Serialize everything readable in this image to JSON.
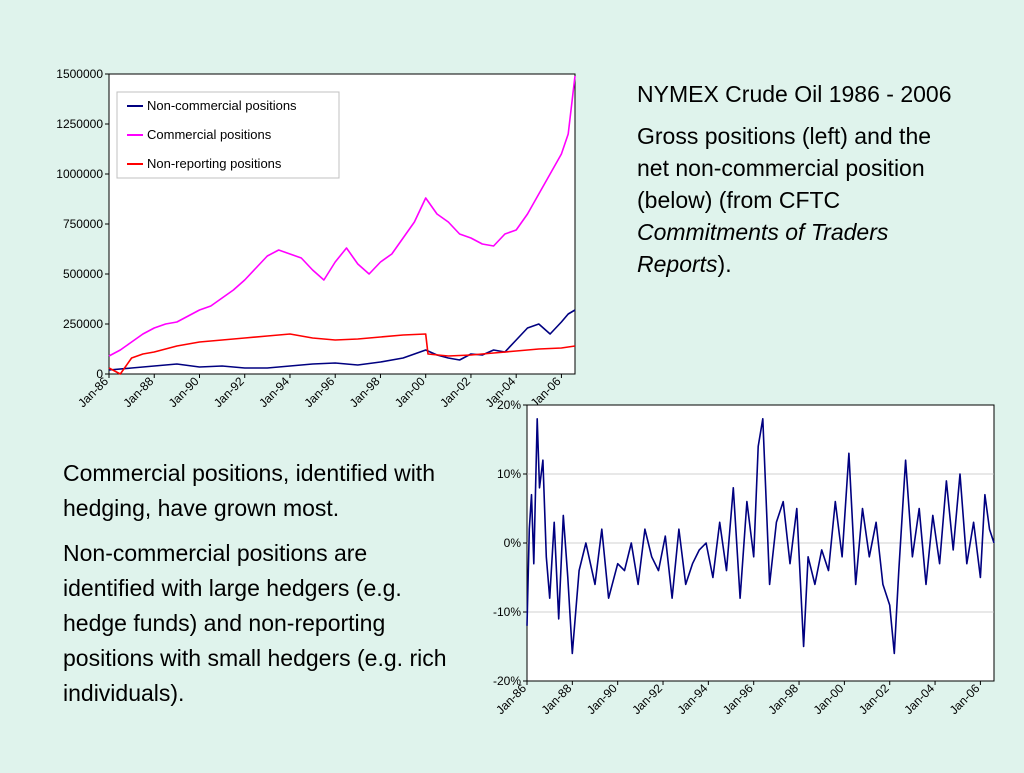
{
  "slide": {
    "title": "NYMEX Crude Oil 1986 - 2006",
    "description_part1": "Gross positions (left) and the net non-commercial position (below) (from CFTC ",
    "description_italic": "Commitments of Traders Reports",
    "description_end": ").",
    "note1": "Commercial positions, identified with hedging, have grown most.",
    "note2": "Non-commercial positions are identified with large hedgers (e.g. hedge funds) and non-reporting positions with small hedgers (e.g. rich individuals)."
  },
  "colors": {
    "background": "#dff3ec",
    "noncommercial": "#000080",
    "commercial": "#ff00ff",
    "nonreporting": "#ff0000"
  },
  "chart_data": [
    {
      "type": "line",
      "title": "",
      "xlabel": "",
      "ylabel": "",
      "x_tick_labels": [
        "Jan-86",
        "Jan-88",
        "Jan-90",
        "Jan-92",
        "Jan-94",
        "Jan-96",
        "Jan-98",
        "Jan-00",
        "Jan-02",
        "Jan-04",
        "Jan-06"
      ],
      "y_tick_labels": [
        "0",
        "250000",
        "500000",
        "750000",
        "1000000",
        "1250000",
        "1500000"
      ],
      "xlim": [
        1986.0,
        2006.6
      ],
      "ylim": [
        0,
        1500000
      ],
      "legend_placement": "top-left",
      "series": [
        {
          "name": "Non-commercial positions",
          "color": "#000080",
          "x": [
            1986.0,
            1987.0,
            1988.0,
            1989.0,
            1990.0,
            1991.0,
            1992.0,
            1993.0,
            1994.0,
            1995.0,
            1996.0,
            1997.0,
            1998.0,
            1999.0,
            1999.5,
            2000.0,
            2000.5,
            2001.0,
            2001.5,
            2002.0,
            2002.5,
            2003.0,
            2003.5,
            2004.0,
            2004.5,
            2005.0,
            2005.5,
            2006.0,
            2006.3,
            2006.6
          ],
          "y": [
            20000,
            30000,
            40000,
            50000,
            35000,
            40000,
            30000,
            30000,
            40000,
            50000,
            55000,
            45000,
            60000,
            80000,
            100000,
            120000,
            95000,
            80000,
            70000,
            100000,
            95000,
            120000,
            110000,
            170000,
            230000,
            250000,
            200000,
            260000,
            300000,
            320000
          ]
        },
        {
          "name": "Commercial positions",
          "color": "#ff00ff",
          "x": [
            1986.0,
            1986.5,
            1987.0,
            1987.5,
            1988.0,
            1988.5,
            1989.0,
            1989.5,
            1990.0,
            1990.5,
            1991.0,
            1991.5,
            1992.0,
            1992.5,
            1993.0,
            1993.5,
            1994.0,
            1994.5,
            1995.0,
            1995.5,
            1996.0,
            1996.5,
            1997.0,
            1997.5,
            1998.0,
            1998.5,
            1999.0,
            1999.5,
            2000.0,
            2000.5,
            2001.0,
            2001.5,
            2002.0,
            2002.5,
            2003.0,
            2003.5,
            2004.0,
            2004.5,
            2005.0,
            2005.5,
            2006.0,
            2006.3,
            2006.6
          ],
          "y": [
            90000,
            120000,
            160000,
            200000,
            230000,
            250000,
            260000,
            290000,
            320000,
            340000,
            380000,
            420000,
            470000,
            530000,
            590000,
            620000,
            600000,
            580000,
            520000,
            470000,
            560000,
            630000,
            550000,
            500000,
            560000,
            600000,
            680000,
            760000,
            880000,
            800000,
            760000,
            700000,
            680000,
            650000,
            640000,
            700000,
            720000,
            800000,
            900000,
            1000000,
            1100000,
            1200000,
            1490000
          ]
        },
        {
          "name": "Non-reporting positions",
          "color": "#ff0000",
          "x": [
            1986.0,
            1986.5,
            1987.0,
            1987.5,
            1988.0,
            1989.0,
            1990.0,
            1991.0,
            1992.0,
            1993.0,
            1994.0,
            1995.0,
            1996.0,
            1997.0,
            1998.0,
            1999.0,
            2000.0,
            2000.1,
            2001.0,
            2002.0,
            2003.0,
            2004.0,
            2005.0,
            2006.0,
            2006.6
          ],
          "y": [
            30000,
            0,
            80000,
            100000,
            110000,
            140000,
            160000,
            170000,
            180000,
            190000,
            200000,
            180000,
            170000,
            175000,
            185000,
            195000,
            200000,
            100000,
            90000,
            95000,
            105000,
            115000,
            125000,
            130000,
            140000
          ]
        }
      ]
    },
    {
      "type": "line",
      "title": "",
      "xlabel": "",
      "ylabel": "",
      "x_tick_labels": [
        "Jan-86",
        "Jan-88",
        "Jan-90",
        "Jan-92",
        "Jan-94",
        "Jan-96",
        "Jan-98",
        "Jan-00",
        "Jan-02",
        "Jan-04",
        "Jan-06"
      ],
      "y_tick_labels": [
        "-20%",
        "-10%",
        "0%",
        "10%",
        "20%"
      ],
      "xlim": [
        1986.0,
        2006.6
      ],
      "ylim": [
        -20,
        20
      ],
      "series": [
        {
          "color": "#000080",
          "x": [
            1986.0,
            1986.1,
            1986.2,
            1986.3,
            1986.45,
            1986.55,
            1986.7,
            1986.85,
            1987.0,
            1987.2,
            1987.4,
            1987.6,
            1987.8,
            1988.0,
            1988.3,
            1988.6,
            1989.0,
            1989.3,
            1989.6,
            1990.0,
            1990.3,
            1990.6,
            1990.9,
            1991.2,
            1991.5,
            1991.8,
            1992.1,
            1992.4,
            1992.7,
            1993.0,
            1993.3,
            1993.6,
            1993.9,
            1994.2,
            1994.5,
            1994.8,
            1995.1,
            1995.4,
            1995.7,
            1996.0,
            1996.2,
            1996.4,
            1996.7,
            1997.0,
            1997.3,
            1997.6,
            1997.9,
            1998.2,
            1998.4,
            1998.7,
            1999.0,
            1999.3,
            1999.6,
            1999.9,
            2000.2,
            2000.5,
            2000.8,
            2001.1,
            2001.4,
            2001.7,
            2002.0,
            2002.2,
            2002.4,
            2002.7,
            2003.0,
            2003.3,
            2003.6,
            2003.9,
            2004.2,
            2004.5,
            2004.8,
            2005.1,
            2005.4,
            2005.7,
            2006.0,
            2006.2,
            2006.4,
            2006.6
          ],
          "y": [
            -12,
            2,
            7,
            -3,
            18,
            8,
            12,
            -2,
            -8,
            3,
            -11,
            4,
            -5,
            -16,
            -4,
            0,
            -6,
            2,
            -8,
            -3,
            -4,
            0,
            -6,
            2,
            -2,
            -4,
            1,
            -8,
            2,
            -6,
            -3,
            -1,
            0,
            -5,
            3,
            -4,
            8,
            -8,
            6,
            -2,
            14,
            18,
            -6,
            3,
            6,
            -3,
            5,
            -15,
            -2,
            -6,
            -1,
            -4,
            6,
            -2,
            13,
            -6,
            5,
            -2,
            3,
            -6,
            -9,
            -16,
            -4,
            12,
            -2,
            5,
            -6,
            4,
            -3,
            9,
            -1,
            10,
            -3,
            3,
            -5,
            7,
            2,
            0
          ]
        }
      ]
    }
  ]
}
